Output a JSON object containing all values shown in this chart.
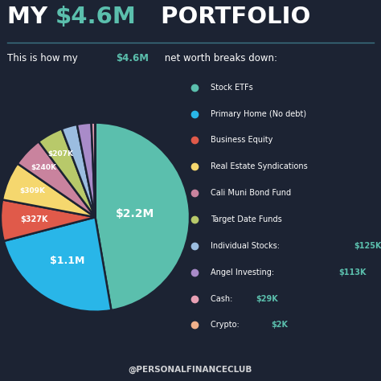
{
  "bg_color": "#1c2333",
  "highlight_color": "#5bbfad",
  "title_white1": "MY ",
  "title_green": "$4.6M",
  "title_white2": " PORTFOLIO",
  "subtitle_white1": "This is how my ",
  "subtitle_green": "$4.6M",
  "subtitle_white2": " net worth breaks down:",
  "labels": [
    "Stock ETFs",
    "Primary Home (No debt)",
    "Business Equity",
    "Real Estate Syndications",
    "Cali Muni Bond Fund",
    "Target Date Funds",
    "Individual Stocks: $125K",
    "Angel Investing: $113K",
    "Cash: $29K",
    "Crypto: $2K"
  ],
  "label_highlights": [
    null,
    null,
    null,
    null,
    null,
    null,
    "$125K",
    "$113K",
    "$29K",
    "$2K"
  ],
  "label_bases": [
    null,
    null,
    null,
    null,
    null,
    null,
    "Individual Stocks: ",
    "Angel Investing: ",
    "Cash: ",
    "Crypto: "
  ],
  "values": [
    2200,
    1100,
    327,
    309,
    240,
    207,
    125,
    113,
    29,
    2
  ],
  "slice_labels": [
    "$2.2M",
    "$1.1M",
    "$327K",
    "$309K",
    "$240K",
    "$207K",
    "",
    "",
    "",
    ""
  ],
  "colors": [
    "#5bbfad",
    "#29b6e8",
    "#e05a4a",
    "#f5d76e",
    "#c9839e",
    "#b8c96a",
    "#9bbde0",
    "#a98bc9",
    "#e8a0b4",
    "#f0b08a"
  ],
  "footer": "@PERSONALFINANCECLUB",
  "divider_color": "#4a9aaa"
}
